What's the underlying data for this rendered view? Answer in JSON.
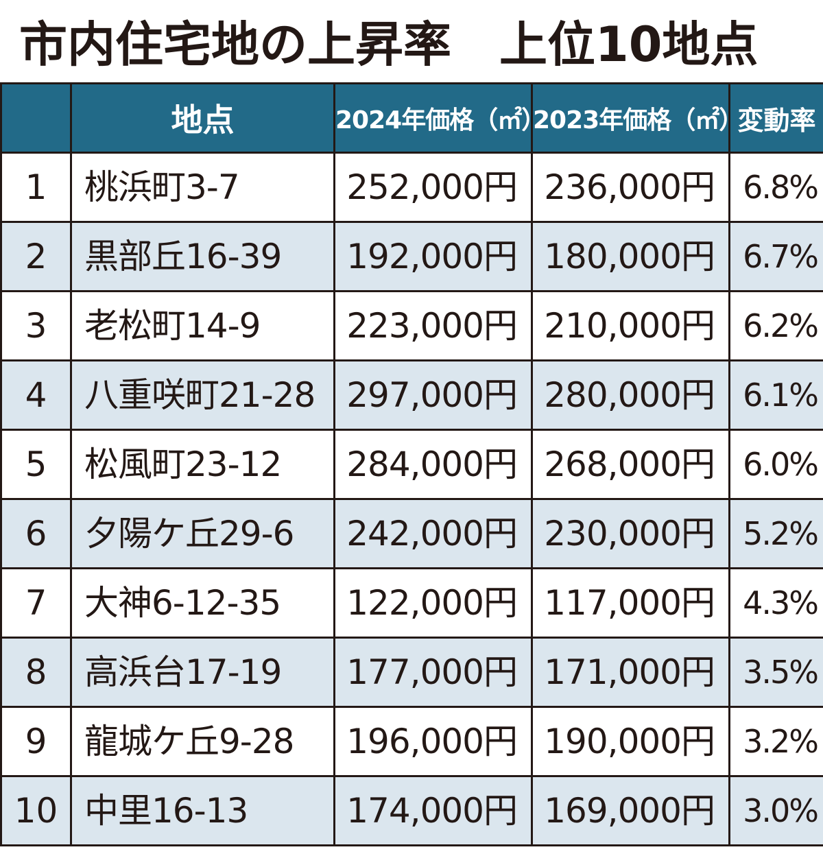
{
  "title": "市内住宅地の上昇率　上位10地点",
  "colors": {
    "header_bg": "#226a88",
    "header_text": "#ffffff",
    "stripe": "#dbe6ee",
    "border": "#231815"
  },
  "chart_data": {
    "type": "table",
    "title": "市内住宅地の上昇率　上位10地点",
    "columns": [
      "",
      "地点",
      "2024年価格（㎡）",
      "2023年価格（㎡）",
      "変動率"
    ],
    "rows": [
      {
        "rank": "1",
        "place": "桃浜町3-7",
        "price_2024": "252,000円",
        "price_2023": "236,000円",
        "rate": "6.8%"
      },
      {
        "rank": "2",
        "place": "黒部丘16-39",
        "price_2024": "192,000円",
        "price_2023": "180,000円",
        "rate": "6.7%"
      },
      {
        "rank": "3",
        "place": "老松町14-9",
        "price_2024": "223,000円",
        "price_2023": "210,000円",
        "rate": "6.2%"
      },
      {
        "rank": "4",
        "place": "八重咲町21-28",
        "price_2024": "297,000円",
        "price_2023": "280,000円",
        "rate": "6.1%"
      },
      {
        "rank": "5",
        "place": "松風町23-12",
        "price_2024": "284,000円",
        "price_2023": "268,000円",
        "rate": "6.0%"
      },
      {
        "rank": "6",
        "place": "夕陽ケ丘29-6",
        "price_2024": "242,000円",
        "price_2023": "230,000円",
        "rate": "5.2%"
      },
      {
        "rank": "7",
        "place": "大神6-12-35",
        "price_2024": "122,000円",
        "price_2023": "117,000円",
        "rate": "4.3%"
      },
      {
        "rank": "8",
        "place": "高浜台17-19",
        "price_2024": "177,000円",
        "price_2023": "171,000円",
        "rate": "3.5%"
      },
      {
        "rank": "9",
        "place": "龍城ケ丘9-28",
        "price_2024": "196,000円",
        "price_2023": "190,000円",
        "rate": "3.2%"
      },
      {
        "rank": "10",
        "place": "中里16-13",
        "price_2024": "174,000円",
        "price_2023": "169,000円",
        "rate": "3.0%"
      }
    ]
  }
}
